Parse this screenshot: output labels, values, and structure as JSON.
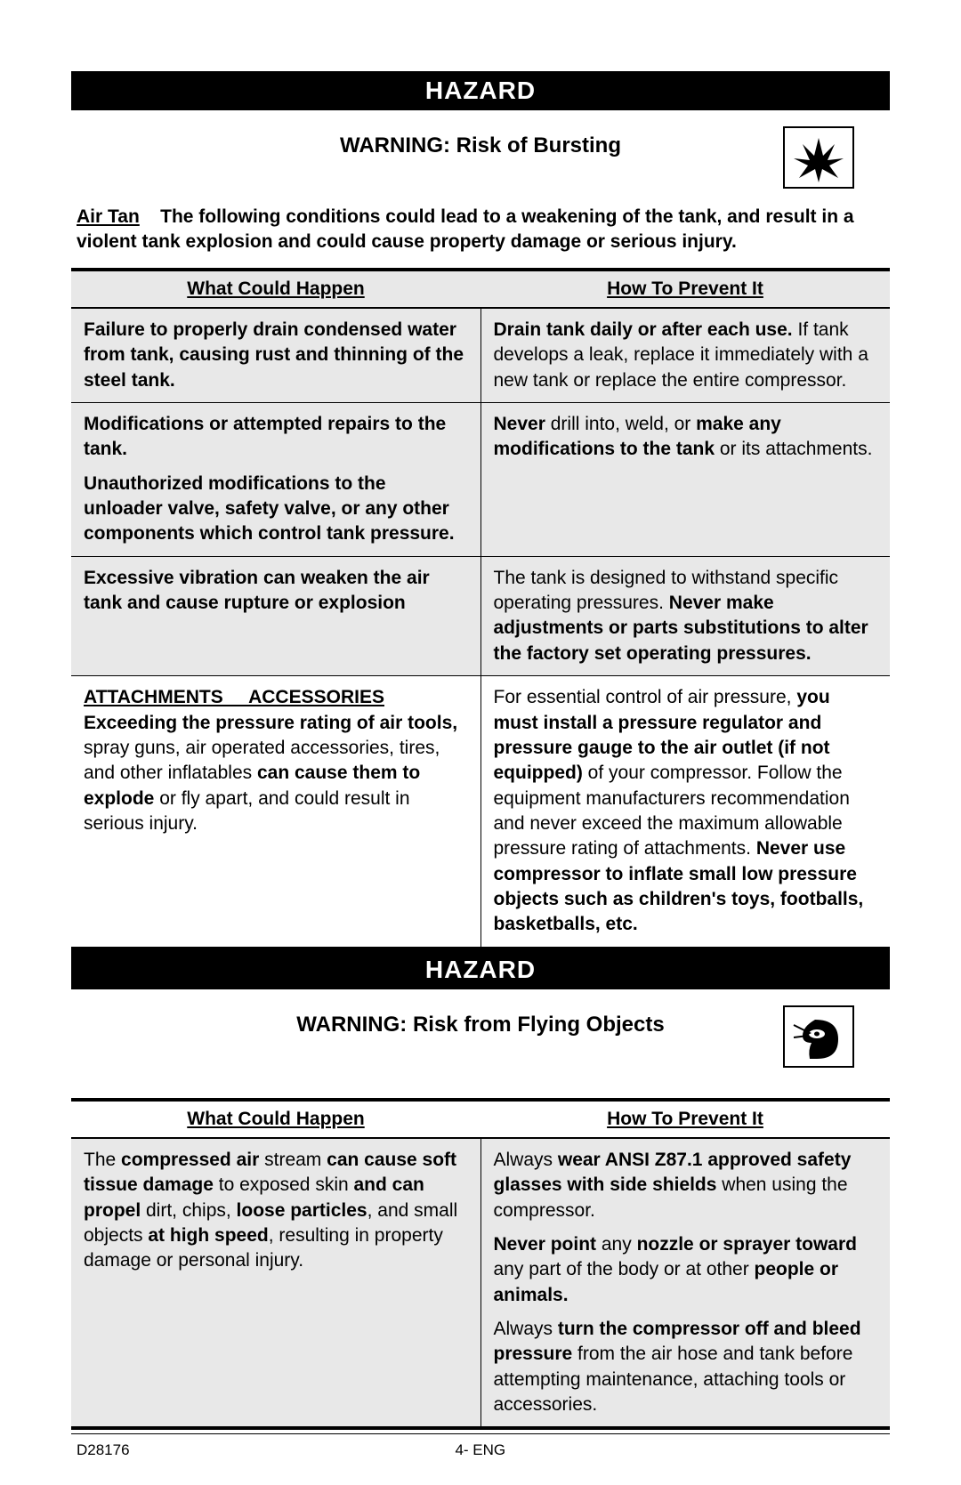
{
  "doc": {
    "code": "D28176",
    "page_label": "4- ENG"
  },
  "hazard_label": "HAZARD",
  "sections": [
    {
      "warning_title": "WARNING: Risk of Bursting",
      "icon": "burst",
      "intro_lead": "Air Tan",
      "intro_body": "The following conditions could lead to a weakening of the tank, and result in a violent tank explosion and could cause property damage or serious injury.",
      "col1": "What Could Happen",
      "col2": "How To Prevent It",
      "rows": [
        {
          "shade": true,
          "left": "<b>Failure to properly drain condensed water from tank, causing rust and thinning of the steel tank.</b>",
          "right": "<b>Drain tank daily or after each use.</b> If tank develops a leak, replace it immediately with a new tank or replace the entire compressor."
        },
        {
          "shade": true,
          "sep": true,
          "left": "<p class='para'><b>Modifications or attempted repairs to the tank.</b></p><p class='para'><b>Unauthorized modifications to the unloader valve, safety valve, or any other components which control tank pressure.</b></p>",
          "right": "<b>Never</b> drill into, weld, or <b>make any modifications to the tank</b> or its attachments."
        },
        {
          "shade": true,
          "sep": true,
          "left": "<b>Excessive vibration can weaken the air tank and cause rupture or explosion</b>",
          "right": "The tank is designed to withstand specific operating pressures. <b>Never make adjustments or parts substitutions to alter the factory set operating pressures.</b>"
        },
        {
          "shade": false,
          "sep": true,
          "left": "<span class='uline'>ATTACHMENTS &nbsp;&nbsp;&nbsp; ACCESSORIES</span><br><b>Exceeding the pressure rating of air tools,</b> spray guns, air operated accessories, tires, and other inflatables <b>can cause them to explode</b> or fly apart, and could result in serious injury.",
          "right": "For essential control of air pressure, <b>you must install a pressure regulator and pressure gauge to the air outlet (if not equipped)</b> of your compressor. Follow the equipment manufacturers recommendation and never exceed the maximum allowable pressure rating of attachments. <b>Never use compressor to inflate small low pressure objects such as children's toys, footballs, basketballs, etc.</b>"
        }
      ]
    },
    {
      "warning_title": "WARNING: Risk from Flying Objects",
      "icon": "goggles",
      "col1": "What Could Happen",
      "col2": "How To Prevent It",
      "rows": [
        {
          "shade": true,
          "left": "The <b>compressed air</b> stream <b>can cause soft tissue damage</b> to exposed skin <b>and can propel</b> dirt, chips, <b>loose particles</b>, and small objects <b>at high speed</b>, resulting in property damage or personal injury.",
          "right": "<p class='para'>Always <b>wear ANSI Z87.1 approved safety glasses with side shields</b> when using the compressor.</p><p class='para'><b>Never point</b> any <b>nozzle or sprayer toward</b> any part of the body or at other <b>people or animals.</b></p><p class='para'>Always <b>turn the compressor off and bleed pressure</b> from the air hose and tank before attempting maintenance, attaching tools or accessories.</p>"
        }
      ]
    }
  ]
}
